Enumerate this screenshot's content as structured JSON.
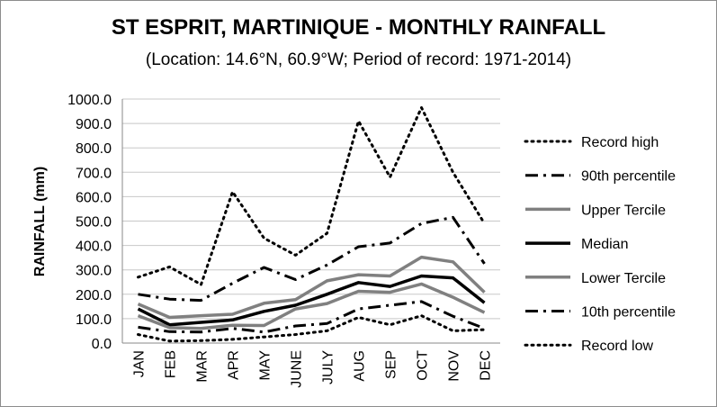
{
  "chart_data": {
    "type": "line",
    "title": "ST ESPRIT, MARTINIQUE - MONTHLY RAINFALL",
    "subtitle": "(Location: 14.6°N, 60.9°W; Period of record: 1971-2014)",
    "ylabel": "RAINFALL (mm)",
    "xlabel": "",
    "ylim": [
      0,
      1000
    ],
    "y_ticks": [
      "0.0",
      "100.0",
      "200.0",
      "300.0",
      "400.0",
      "500.0",
      "600.0",
      "700.0",
      "800.0",
      "900.0",
      "1000.0"
    ],
    "categories": [
      "JAN",
      "FEB",
      "MAR",
      "APR",
      "MAY",
      "JUNE",
      "JULY",
      "AUG",
      "SEP",
      "OCT",
      "NOV",
      "DEC"
    ],
    "grid": "horizontal",
    "legend_position": "right",
    "series": [
      {
        "name": "Record high",
        "color": "#000000",
        "style": "dotted",
        "values": [
          270,
          312,
          240,
          620,
          430,
          360,
          450,
          910,
          680,
          965,
          700,
          490
        ]
      },
      {
        "name": "90th percentile",
        "color": "#000000",
        "style": "dash-dot",
        "values": [
          200,
          180,
          175,
          245,
          310,
          260,
          320,
          395,
          410,
          490,
          515,
          325
        ]
      },
      {
        "name": "Upper Tercile",
        "color": "#808080",
        "style": "solid",
        "values": [
          160,
          105,
          112,
          118,
          163,
          178,
          255,
          280,
          275,
          352,
          333,
          208
        ]
      },
      {
        "name": "Median",
        "color": "#000000",
        "style": "solid",
        "values": [
          140,
          75,
          85,
          95,
          130,
          155,
          200,
          248,
          232,
          275,
          267,
          165
        ]
      },
      {
        "name": "Lower Tercile",
        "color": "#808080",
        "style": "solid",
        "values": [
          112,
          63,
          60,
          73,
          72,
          140,
          162,
          212,
          208,
          242,
          188,
          125
        ]
      },
      {
        "name": "10th percentile",
        "color": "#000000",
        "style": "dash-dot",
        "values": [
          65,
          47,
          45,
          60,
          45,
          70,
          80,
          140,
          155,
          170,
          110,
          60
        ]
      },
      {
        "name": "Record low",
        "color": "#000000",
        "style": "dotted",
        "values": [
          35,
          8,
          10,
          15,
          25,
          35,
          50,
          105,
          75,
          112,
          50,
          55
        ]
      }
    ]
  }
}
